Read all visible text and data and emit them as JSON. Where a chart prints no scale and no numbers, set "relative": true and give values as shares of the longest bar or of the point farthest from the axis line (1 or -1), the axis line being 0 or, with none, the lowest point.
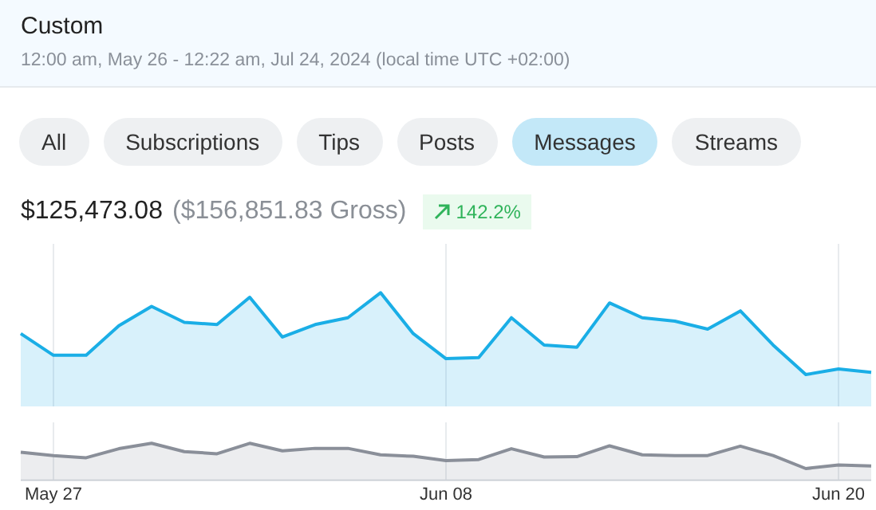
{
  "chart_data": [
    {
      "type": "area",
      "title": "Custom",
      "subtitle": "12:00 am, May 26 - 12:22 am, Jul 24, 2024 (local time UTC +02:00)",
      "annotations": [
        "All",
        "Subscriptions",
        "Tips",
        "Posts",
        "Messages",
        "Streams",
        "$125,473.08",
        "($156,851.83 Gross)",
        "142.2%"
      ],
      "relative": true,
      "grid": "x",
      "tick_labels": false,
      "categories": [
        null,
        null,
        null,
        null,
        null,
        null,
        null,
        null,
        null,
        null,
        null,
        null,
        null,
        null,
        null,
        null,
        null,
        null,
        null,
        null,
        null,
        null,
        null,
        null,
        null,
        null,
        null
      ],
      "series": [
        {
          "color": "#1aaee6",
          "values": [
            0.64,
            0.45,
            0.45,
            0.71,
            0.88,
            0.74,
            0.72,
            0.96,
            0.61,
            0.72,
            0.78,
            1.0,
            0.64,
            0.42,
            0.43,
            0.78,
            0.54,
            0.52,
            0.91,
            0.78,
            0.75,
            0.68,
            0.84,
            0.54,
            0.28,
            0.33,
            0.3
          ]
        }
      ]
    },
    {
      "type": "area",
      "relative": true,
      "grid": "x",
      "tick_labels": "x",
      "categories": [
        null,
        "May 27",
        null,
        null,
        null,
        null,
        null,
        null,
        null,
        null,
        null,
        null,
        null,
        "Jun 08",
        null,
        null,
        null,
        null,
        null,
        null,
        null,
        null,
        null,
        null,
        null,
        "Jun 20",
        null
      ],
      "series": [
        {
          "color": "#8a8f99",
          "values": [
            0.75,
            0.66,
            0.6,
            0.85,
            1.0,
            0.77,
            0.71,
            1.0,
            0.79,
            0.86,
            0.86,
            0.68,
            0.64,
            0.52,
            0.55,
            0.85,
            0.62,
            0.63,
            0.93,
            0.68,
            0.66,
            0.66,
            0.92,
            0.66,
            0.3,
            0.4,
            0.37
          ]
        }
      ]
    }
  ]
}
